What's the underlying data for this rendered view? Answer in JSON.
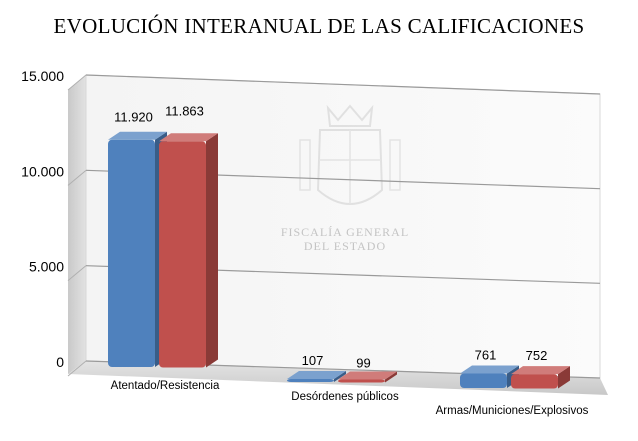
{
  "chart_data": {
    "type": "bar",
    "title": "EVOLUCIÓN INTERANUAL DE LAS CALIFICACIONES",
    "categories": [
      "Atentado/Resistencia",
      "Desórdenes públicos",
      "Armas/Municiones/Explosivos"
    ],
    "series": [
      {
        "values": [
          11920,
          107,
          761
        ],
        "labels": [
          "11.920",
          "107",
          "761"
        ],
        "color": "#4f81bd"
      },
      {
        "values": [
          11863,
          99,
          752
        ],
        "labels": [
          "11.863",
          "99",
          "752"
        ],
        "color": "#c0504d"
      }
    ],
    "ylim": [
      0,
      15000
    ],
    "yticks": [
      0,
      5000,
      10000,
      15000
    ],
    "ytick_labels": [
      "0",
      "5.000",
      "10.000",
      "15.000"
    ],
    "grid": true,
    "legend": "none",
    "style": "3d"
  },
  "watermark": {
    "line1": "FISCALÍA GENERAL",
    "line2": "DEL ESTADO"
  }
}
